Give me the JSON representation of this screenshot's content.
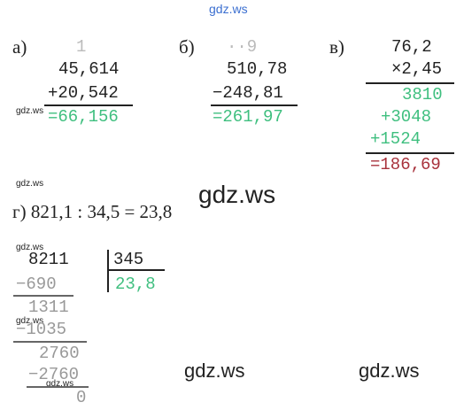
{
  "watermarks": [
    "gdz.ws",
    "gdz.ws",
    "gdz.ws",
    "gdz.ws",
    "gdz.ws",
    "gdz.ws",
    "gdz.ws",
    "gdz.ws",
    "gdz.ws"
  ],
  "problems": [
    {
      "label": "а)",
      "carry": "1",
      "rows": [
        "45,614",
        "+20,542",
        "=66,156"
      ]
    },
    {
      "label": "б)",
      "carry": "··9",
      "rows": [
        "510,78",
        "−248,81",
        "=261,97"
      ]
    },
    {
      "label": "в)",
      "rows": [
        "76,2",
        "×2,45",
        "3810",
        "+3048",
        "+1524",
        "=186,69"
      ]
    }
  ],
  "division": {
    "equation": "г) 821,1 : 34,5 = 23,8",
    "dividend": "8211",
    "divisor": "345",
    "quotient": "23,8",
    "steps": [
      "−690",
      "1311",
      "−1035",
      "2760",
      "−2760",
      "0"
    ]
  }
}
